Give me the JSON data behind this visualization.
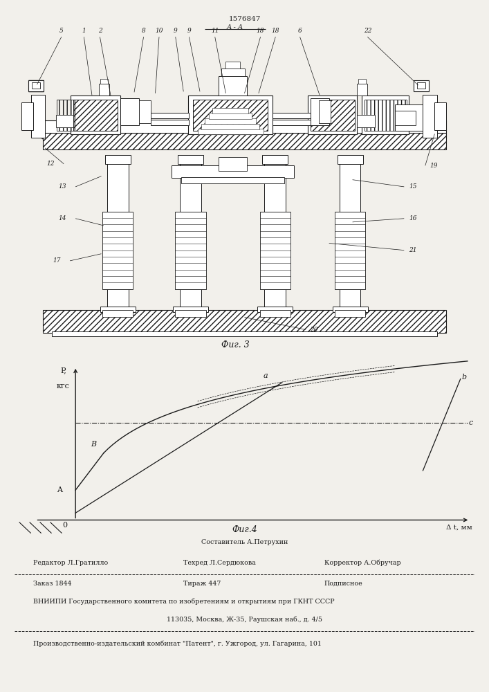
{
  "patent_number": "1576847",
  "fig3_label": "Фиг. 3",
  "fig4_label": "Фиг.4",
  "section_label": "А - А",
  "bg_color": "#f2f0eb",
  "line_color": "#1a1a1a",
  "footer_line1": "Составитель А.Петрухин",
  "footer_line2_left": "Редактор Л.Гратилло",
  "footer_line2_mid": "Техред Л.Сердюкова",
  "footer_line2_right": "Корректор А.Обручар",
  "footer_line3_left": "Заказ 1844",
  "footer_line3_mid": "Тираж 447",
  "footer_line3_right": "Подписное",
  "footer_line4": "ВНИИПИ Государственного комитета по изобретениям и открытиям при ГКНТ СССР",
  "footer_line5": "113035, Москва, Ж-35, Раушская наб., д. 4/5",
  "footer_line6": "Производственно-издательский комбинат \"Патент\", г. Ужгород, ул. Гагарина, 101"
}
